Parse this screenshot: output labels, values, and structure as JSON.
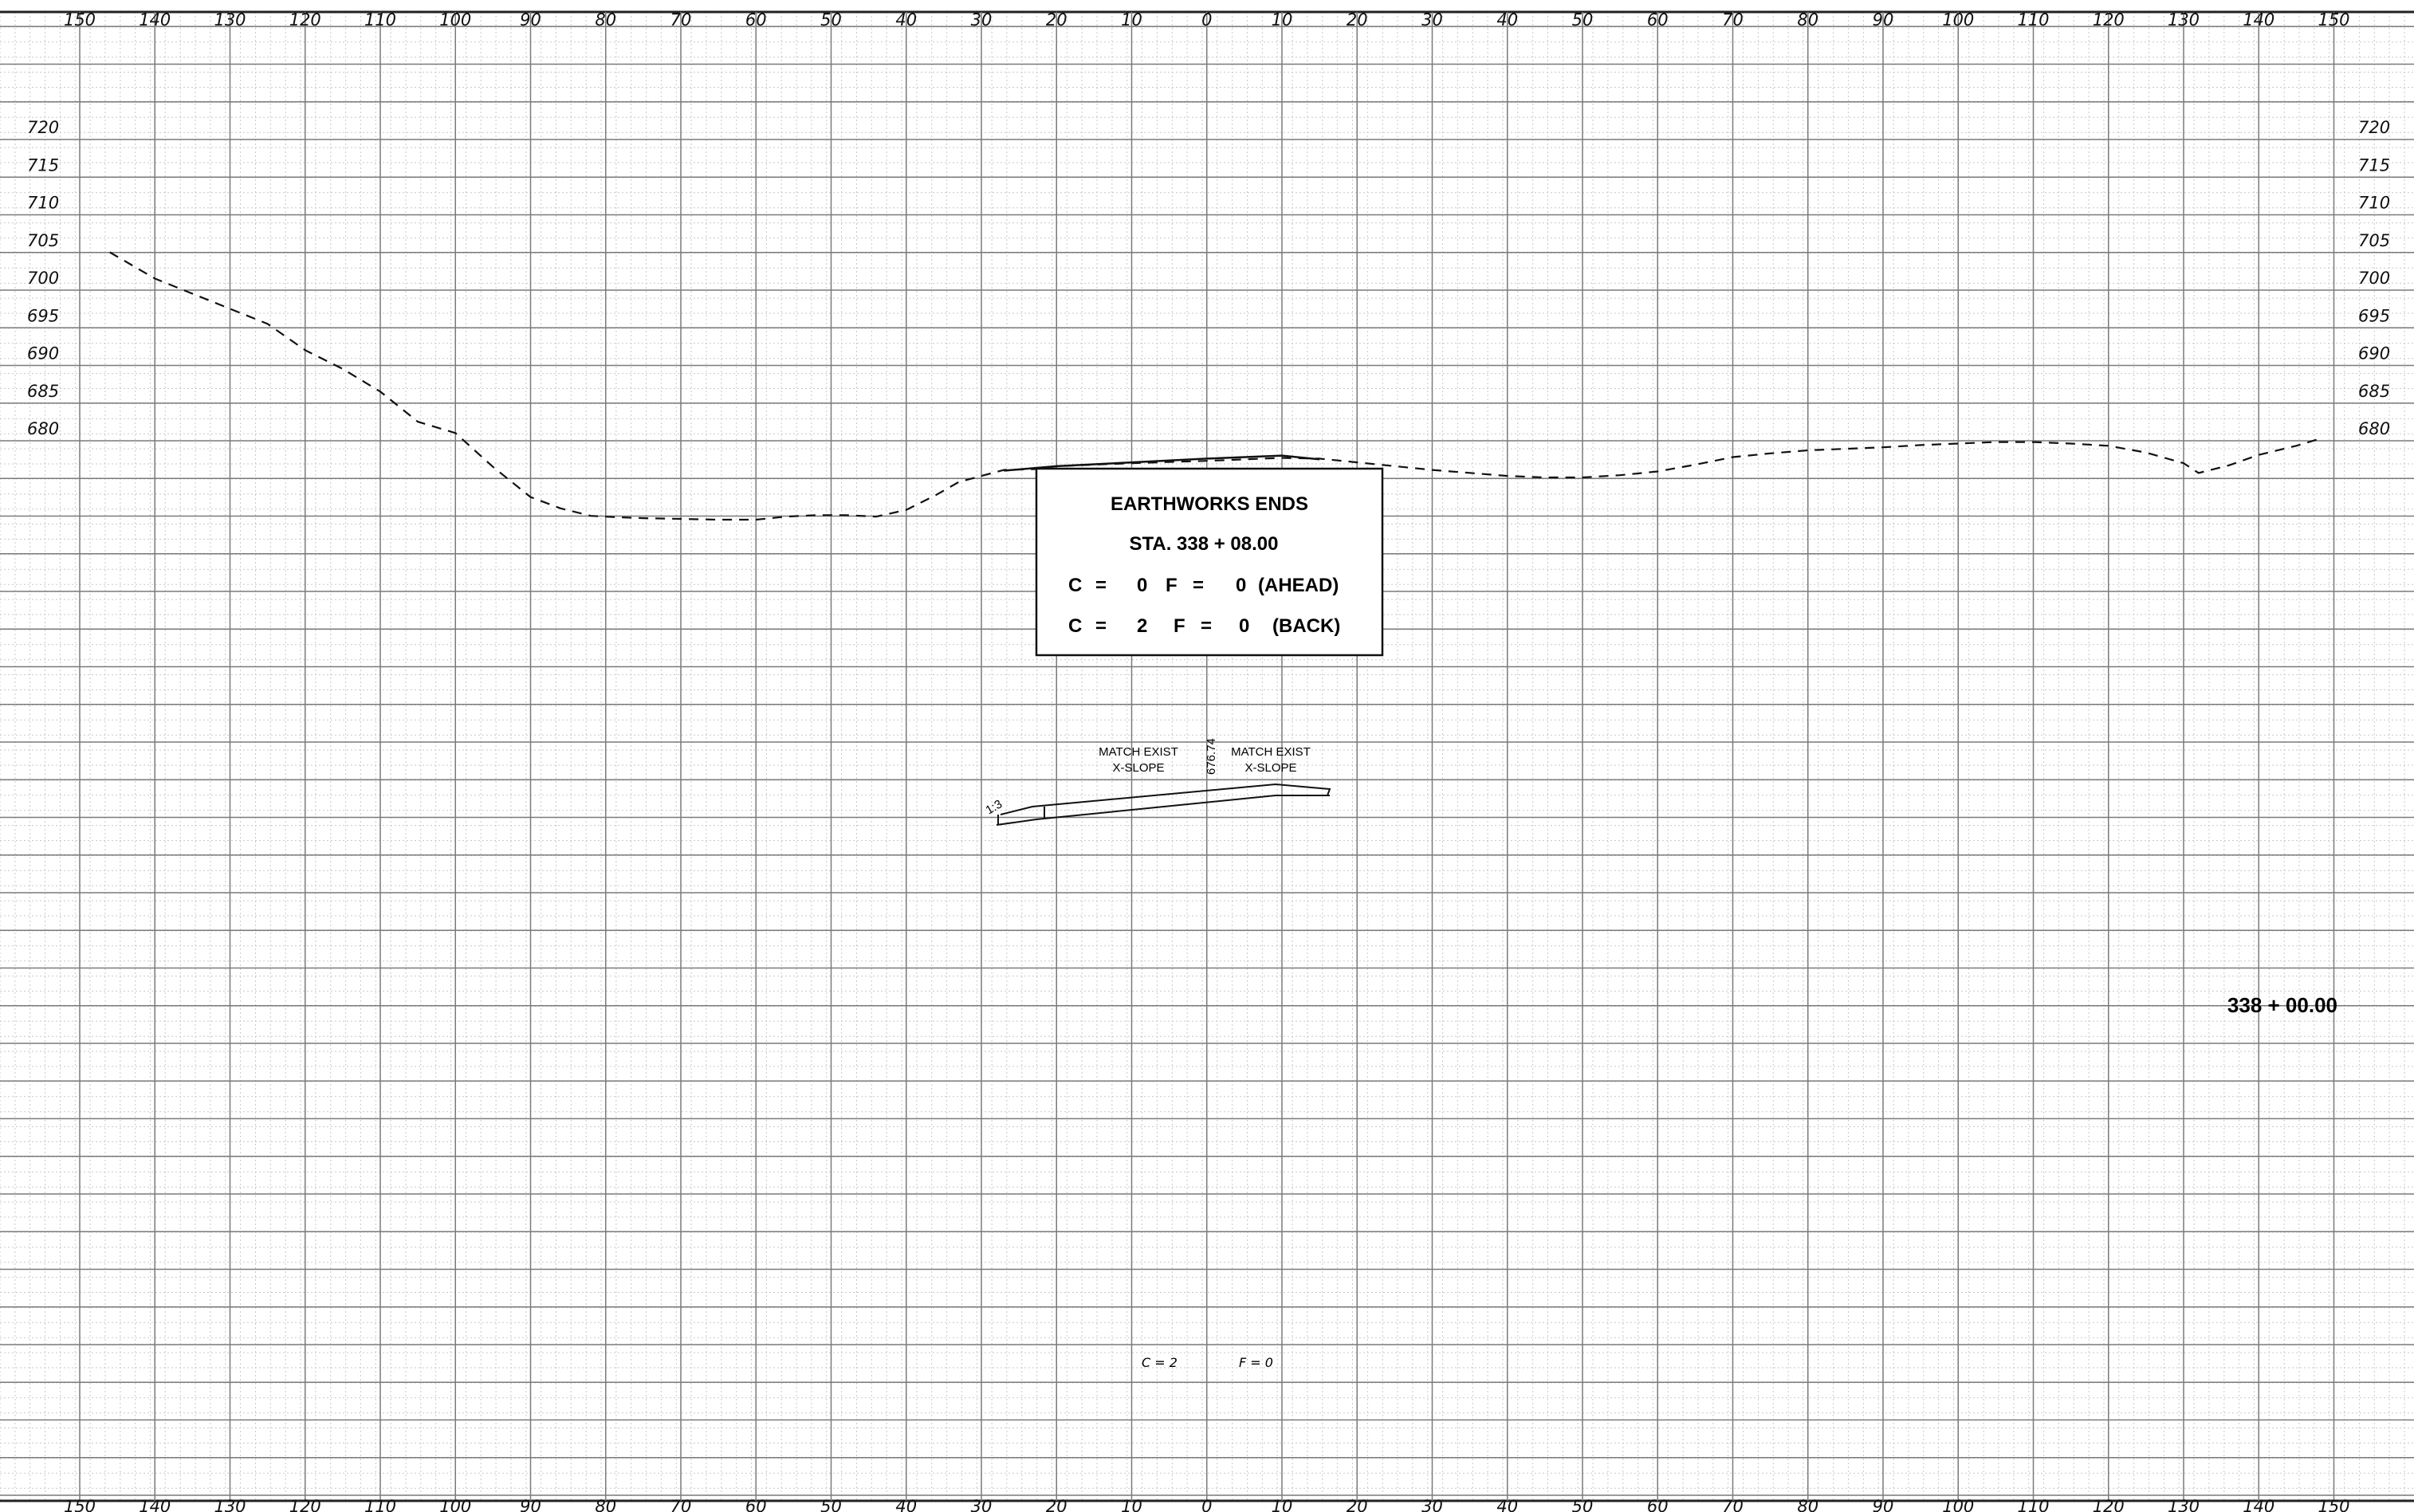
{
  "x_axis_labels": [
    "150",
    "140",
    "130",
    "120",
    "110",
    "100",
    "90",
    "80",
    "70",
    "60",
    "50",
    "40",
    "30",
    "20",
    "10",
    "0",
    "10",
    "20",
    "30",
    "40",
    "50",
    "60",
    "70",
    "80",
    "90",
    "100",
    "110",
    "120",
    "130",
    "140",
    "150"
  ],
  "y_axis_labels": [
    "720",
    "715",
    "710",
    "705",
    "700",
    "695",
    "690",
    "685",
    "680"
  ],
  "info_box": {
    "title": "EARTHWORKS ENDS",
    "station": "STA. 338 + 08.00",
    "ahead": {
      "c": "C",
      "eq1": "=",
      "c_val": "0",
      "f": "F",
      "eq2": "=",
      "f_val": "0",
      "tag": "(AHEAD)"
    },
    "back": {
      "c": "C",
      "eq1": "=",
      "c_val": "2",
      "f": "F",
      "eq2": "=",
      "f_val": "0",
      "tag": "(BACK)"
    }
  },
  "annotations": {
    "match_left_1": "MATCH EXIST",
    "match_left_2": "X-SLOPE",
    "match_right_1": "MATCH EXIST",
    "match_right_2": "X-SLOPE",
    "elevation_tag": "676.74",
    "slope_tag": "1:3"
  },
  "station_label": "338 + 00.00",
  "cut_fill": {
    "cut": "C = 2",
    "fill": "F = 0"
  },
  "colors": {
    "grid_minor": "#c9c9c9",
    "grid_major": "#7a7a7a",
    "line": "#111111"
  },
  "chart_data": {
    "type": "line",
    "xlabel": "",
    "ylabel": "",
    "xlim": [
      -150,
      150
    ],
    "ylim": [
      660,
      725
    ],
    "grid": true,
    "series": [
      {
        "style": "dashed",
        "x": [
          -146,
          -140,
          -130,
          -125,
          -120,
          -115,
          -110,
          -105,
          -100,
          -95,
          -90,
          -86,
          -82,
          -78,
          -75,
          -70,
          -65,
          -60,
          -56,
          -52,
          -48,
          -44,
          -40,
          -36,
          -33,
          -30,
          -27,
          -23,
          -20,
          -10,
          0,
          10,
          15,
          20,
          30,
          40,
          45,
          50,
          55,
          60,
          65,
          70,
          75,
          80,
          85,
          90,
          95,
          100,
          105,
          110,
          115,
          120,
          125,
          130,
          132,
          136,
          140,
          145,
          148
        ],
        "y": [
          704.5,
          701,
          697,
          695,
          691.5,
          689,
          686,
          682,
          680.5,
          676,
          672,
          670.5,
          669.5,
          669.3,
          669.2,
          669.1,
          669.0,
          669.0,
          669.4,
          669.6,
          669.6,
          669.4,
          670.3,
          672.3,
          674.0,
          674.8,
          675.6,
          675.7,
          676.1,
          676.5,
          676.8,
          677.2,
          677.1,
          676.6,
          675.6,
          674.8,
          674.6,
          674.6,
          674.9,
          675.4,
          676.3,
          677.3,
          677.8,
          678.2,
          678.4,
          678.6,
          678.9,
          679.1,
          679.3,
          679.3,
          679.1,
          678.8,
          677.9,
          676.5,
          675.2,
          676.2,
          677.6,
          678.8,
          679.7
        ]
      },
      {
        "style": "solid",
        "x": [
          -27,
          -20,
          -10,
          0,
          10,
          15
        ],
        "y": [
          675.5,
          676.1,
          676.6,
          677.1,
          677.5,
          677.0
        ]
      }
    ]
  }
}
